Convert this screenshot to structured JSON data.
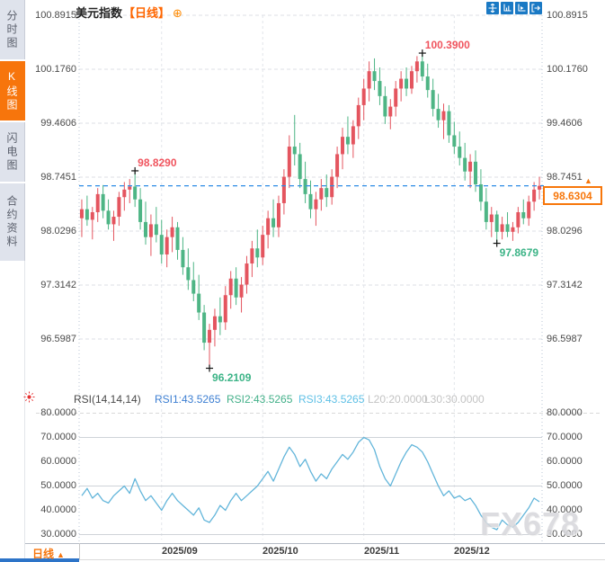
{
  "window_title": "美元指数 K线图",
  "sidebar": {
    "tabs": [
      {
        "label": "分时图",
        "active": false
      },
      {
        "label": "K线图",
        "active": true
      },
      {
        "label": "闪电图",
        "active": false
      },
      {
        "label": "合约资料",
        "active": false
      }
    ]
  },
  "header": {
    "symbol": "美元指数",
    "period_tag": "【日线】",
    "add_icon": "⊕"
  },
  "toolbar": {
    "buttons": [
      {
        "icon": "move-crosshair-icon"
      },
      {
        "icon": "axis-scale-icon"
      },
      {
        "icon": "axis-play-icon"
      },
      {
        "icon": "exit-right-icon"
      }
    ]
  },
  "price_axis": {
    "current_price": "98.6304",
    "arrow_up": "▲"
  },
  "rsi_header": {
    "title": "RSI(14,14,14)",
    "items": [
      {
        "text": "RSI1:43.5265",
        "color": "#3d7fd2"
      },
      {
        "text": "RSI2:43.5265",
        "color": "#43b089"
      },
      {
        "text": "RSI3:43.5265",
        "color": "#5fc0e6"
      },
      {
        "text": "L20:20.0000",
        "color": "#c3c3c3"
      },
      {
        "text": "L30:30.0000",
        "color": "#c3c3c3"
      }
    ]
  },
  "time_axis": {
    "period": "日线",
    "arrow": "▲",
    "dates": [
      "2025/09",
      "2025/10",
      "2025/11",
      "2025/12"
    ]
  },
  "watermark": "FX678",
  "colors": {
    "accent_orange": "#f7750c",
    "up_red": "#e4555f",
    "down_green": "#4eb585",
    "toolbar_blue": "#1a79c4",
    "current_line_blue": "#2e8ce6"
  },
  "chart_data": [
    {
      "type": "candlestick",
      "title": "美元指数 日线",
      "ylim": [
        96.5987,
        100.8915
      ],
      "yticks": [
        "100.8915",
        "100.1760",
        "99.4606",
        "98.7451",
        "98.0296",
        "97.3142",
        "96.5987"
      ],
      "up_color": "#e4555f",
      "down_color": "#4eb585",
      "current_price": 98.6304,
      "months": [
        {
          "label": "2025/09",
          "index": 15
        },
        {
          "label": "2025/10",
          "index": 34
        },
        {
          "label": "2025/11",
          "index": 53
        },
        {
          "label": "2025/12",
          "index": 70
        }
      ],
      "annotations": [
        {
          "index": 10,
          "price": 98.829,
          "label": "98.8290",
          "type": "high",
          "color": "#f0545e"
        },
        {
          "index": 64,
          "price": 100.39,
          "label": "100.3900",
          "type": "high",
          "color": "#f0545e"
        },
        {
          "index": 24,
          "price": 96.2109,
          "label": "96.2109",
          "type": "low",
          "color": "#3bb386"
        },
        {
          "index": 78,
          "price": 97.8679,
          "label": "97.8679",
          "type": "low",
          "color": "#3bb386"
        }
      ],
      "ohlc": [
        [
          98.2,
          98.45,
          97.95,
          98.32
        ],
        [
          98.32,
          98.5,
          98.1,
          98.18
        ],
        [
          98.18,
          98.35,
          97.92,
          98.28
        ],
        [
          98.28,
          98.6,
          98.15,
          98.52
        ],
        [
          98.52,
          98.64,
          98.2,
          98.3
        ],
        [
          98.3,
          98.45,
          98.05,
          98.12
        ],
        [
          98.12,
          98.3,
          97.9,
          98.22
        ],
        [
          98.22,
          98.55,
          98.1,
          98.48
        ],
        [
          98.48,
          98.68,
          98.3,
          98.58
        ],
        [
          98.58,
          98.72,
          98.4,
          98.62
        ],
        [
          98.62,
          98.83,
          98.35,
          98.45
        ],
        [
          98.45,
          98.6,
          98.05,
          98.15
        ],
        [
          98.15,
          98.42,
          97.85,
          97.95
        ],
        [
          97.95,
          98.25,
          97.7,
          98.12
        ],
        [
          98.12,
          98.35,
          97.88,
          97.98
        ],
        [
          97.98,
          98.18,
          97.6,
          97.72
        ],
        [
          97.72,
          98.05,
          97.55,
          97.95
        ],
        [
          97.95,
          98.22,
          97.75,
          98.08
        ],
        [
          98.08,
          98.15,
          97.65,
          97.78
        ],
        [
          97.78,
          97.95,
          97.45,
          97.55
        ],
        [
          97.55,
          97.8,
          97.25,
          97.38
        ],
        [
          97.38,
          97.62,
          97.1,
          97.2
        ],
        [
          97.2,
          97.45,
          96.85,
          96.95
        ],
        [
          96.95,
          97.05,
          96.45,
          96.55
        ],
        [
          96.55,
          96.8,
          96.21,
          96.72
        ],
        [
          96.72,
          97.0,
          96.5,
          96.9
        ],
        [
          96.9,
          97.15,
          96.65,
          96.82
        ],
        [
          96.82,
          97.3,
          96.72,
          97.18
        ],
        [
          97.18,
          97.5,
          97.0,
          97.4
        ],
        [
          97.4,
          97.55,
          97.05,
          97.15
        ],
        [
          97.15,
          97.42,
          96.95,
          97.32
        ],
        [
          97.32,
          97.7,
          97.2,
          97.6
        ],
        [
          97.6,
          97.9,
          97.42,
          97.8
        ],
        [
          97.8,
          98.05,
          97.55,
          97.68
        ],
        [
          97.68,
          98.1,
          97.58,
          97.98
        ],
        [
          97.98,
          98.3,
          97.8,
          98.2
        ],
        [
          98.2,
          98.45,
          97.95,
          98.08
        ],
        [
          98.08,
          98.5,
          97.95,
          98.4
        ],
        [
          98.4,
          98.85,
          98.25,
          98.75
        ],
        [
          98.75,
          99.3,
          98.6,
          99.15
        ],
        [
          99.15,
          99.57,
          98.9,
          99.05
        ],
        [
          99.05,
          99.2,
          98.6,
          98.72
        ],
        [
          98.72,
          98.95,
          98.4,
          98.52
        ],
        [
          98.52,
          98.7,
          98.2,
          98.32
        ],
        [
          98.32,
          98.55,
          98.1,
          98.45
        ],
        [
          98.45,
          98.72,
          98.3,
          98.6
        ],
        [
          98.6,
          98.78,
          98.35,
          98.48
        ],
        [
          98.48,
          98.85,
          98.38,
          98.75
        ],
        [
          98.75,
          99.15,
          98.6,
          99.05
        ],
        [
          99.05,
          99.4,
          98.85,
          99.28
        ],
        [
          99.28,
          99.55,
          99.05,
          99.18
        ],
        [
          99.18,
          99.5,
          99.0,
          99.42
        ],
        [
          99.42,
          99.8,
          99.25,
          99.7
        ],
        [
          99.7,
          100.05,
          99.5,
          99.92
        ],
        [
          99.92,
          100.28,
          99.75,
          100.15
        ],
        [
          100.15,
          100.32,
          99.9,
          100.02
        ],
        [
          100.02,
          100.2,
          99.7,
          99.82
        ],
        [
          99.82,
          99.95,
          99.45,
          99.55
        ],
        [
          99.55,
          99.78,
          99.38,
          99.68
        ],
        [
          99.68,
          100.02,
          99.55,
          99.92
        ],
        [
          99.92,
          100.15,
          99.75,
          100.05
        ],
        [
          100.05,
          100.2,
          99.82,
          99.92
        ],
        [
          99.92,
          100.22,
          99.85,
          100.15
        ],
        [
          100.15,
          100.35,
          100.0,
          100.28
        ],
        [
          100.28,
          100.39,
          100.02,
          100.08
        ],
        [
          100.08,
          100.25,
          99.8,
          99.9
        ],
        [
          99.9,
          100.05,
          99.55,
          99.65
        ],
        [
          99.65,
          99.85,
          99.4,
          99.5
        ],
        [
          99.5,
          99.72,
          99.25,
          99.62
        ],
        [
          99.62,
          99.7,
          99.2,
          99.3
        ],
        [
          99.3,
          99.48,
          99.05,
          99.15
        ],
        [
          99.15,
          99.35,
          98.9,
          99.0
        ],
        [
          99.0,
          99.2,
          98.7,
          98.82
        ],
        [
          98.82,
          99.05,
          98.6,
          98.95
        ],
        [
          98.95,
          99.1,
          98.55,
          98.65
        ],
        [
          98.65,
          98.85,
          98.3,
          98.42
        ],
        [
          98.42,
          98.6,
          98.05,
          98.15
        ],
        [
          98.15,
          98.35,
          97.95,
          98.25
        ],
        [
          98.25,
          98.3,
          97.87,
          98.02
        ],
        [
          98.02,
          98.22,
          97.92,
          98.12
        ],
        [
          98.12,
          98.28,
          97.95,
          98.02
        ],
        [
          98.02,
          98.15,
          97.9,
          98.08
        ],
        [
          98.08,
          98.35,
          98.0,
          98.28
        ],
        [
          98.28,
          98.45,
          98.12,
          98.2
        ],
        [
          98.2,
          98.5,
          98.1,
          98.42
        ],
        [
          98.42,
          98.68,
          98.3,
          98.58
        ],
        [
          98.58,
          98.75,
          98.45,
          98.63
        ]
      ]
    },
    {
      "type": "line",
      "title": "RSI(14,14,14)",
      "ylim": [
        30,
        80
      ],
      "yticks": [
        "80.0000",
        "70.0000",
        "60.0000",
        "50.0000",
        "40.0000",
        "30.0000"
      ],
      "color": "#62b5da",
      "levels_solid": [
        70,
        50,
        30
      ],
      "level_dashed": 80,
      "values": [
        46,
        49,
        45,
        47,
        44,
        43,
        46,
        48,
        50,
        47,
        53,
        48,
        44,
        46,
        43,
        40,
        44,
        47,
        44,
        42,
        40,
        38,
        41,
        36,
        35,
        38,
        42,
        40,
        44,
        47,
        44,
        46,
        48,
        50,
        53,
        56,
        52,
        57,
        62,
        66,
        63,
        58,
        61,
        56,
        52,
        55,
        53,
        57,
        60,
        63,
        61,
        64,
        68,
        70,
        69,
        65,
        58,
        53,
        50,
        55,
        60,
        64,
        67,
        66,
        64,
        60,
        55,
        50,
        46,
        48,
        45,
        46,
        44,
        45,
        42,
        38,
        35,
        33,
        32,
        36,
        34,
        33,
        35,
        38,
        41,
        45,
        43.5
      ]
    }
  ]
}
